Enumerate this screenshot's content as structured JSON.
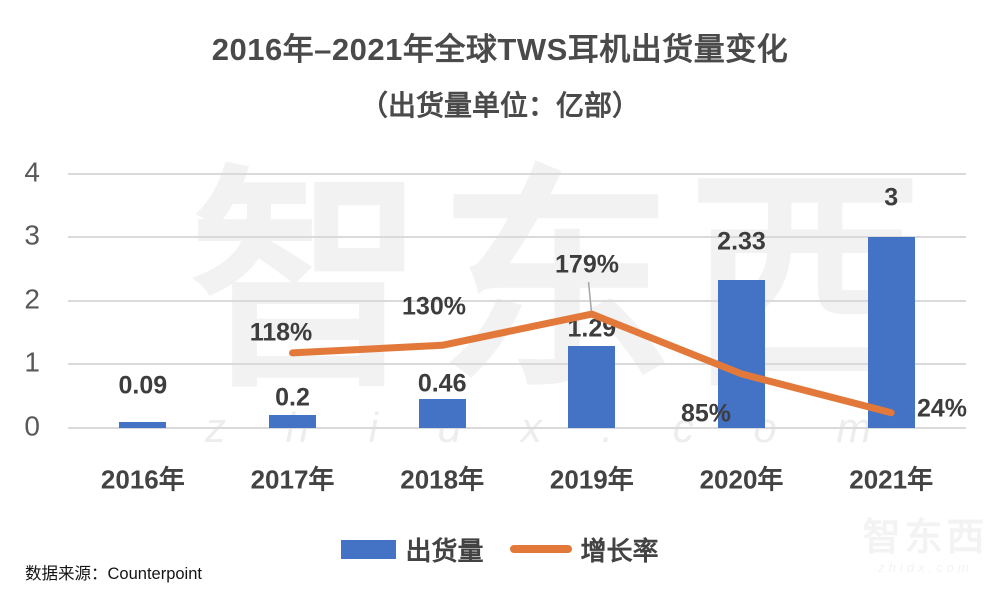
{
  "header": {
    "title": "2016年–2021年全球TWS耳机出货量变化",
    "subtitle": "（出货量单位：亿部）"
  },
  "footer": {
    "source": "数据来源：Counterpoint"
  },
  "legend": {
    "items": [
      {
        "label": "出货量",
        "marker": "bar-swatch",
        "color": "#4472C4"
      },
      {
        "label": "增长率",
        "marker": "line-swatch",
        "color": "#E2793A"
      }
    ]
  },
  "watermark": {
    "logo": "智东西",
    "domain": "z h i d x . c o m",
    "corner_logo": "智东西",
    "corner_domain": "zhidx.com"
  },
  "colors": {
    "bar": "#4472C4",
    "line": "#E2793A",
    "grid": "#DADADA",
    "label_text": "#3D3D3D",
    "axis_text": "#595959",
    "leader_line": "#A6A6A6"
  },
  "chart_data": {
    "type": "bar",
    "subtype": "combo-bar-line-dual-axis",
    "title": "2016年–2021年全球TWS耳机出货量变化",
    "subtitle": "（出货量单位：亿部）",
    "categories": [
      "2016年",
      "2017年",
      "2018年",
      "2019年",
      "2020年",
      "2021年"
    ],
    "series": [
      {
        "name": "出货量",
        "type": "bar",
        "axis": "primary",
        "unit": "亿部",
        "values": [
          0.09,
          0.2,
          0.46,
          1.29,
          2.33,
          3
        ],
        "data_labels": [
          "0.09",
          "0.2",
          "0.46",
          "1.29",
          "2.33",
          "3"
        ]
      },
      {
        "name": "增长率",
        "type": "line",
        "axis": "secondary",
        "unit": "%",
        "values": [
          null,
          118,
          130,
          179,
          85,
          24
        ],
        "data_labels": [
          null,
          "118%",
          "130%",
          "179%",
          "85%",
          "24%"
        ]
      }
    ],
    "primary_axis": {
      "min": 0,
      "max": 4,
      "ticks": [
        0,
        1,
        2,
        3,
        4
      ]
    },
    "secondary_axis": {
      "min": 0,
      "max": 400,
      "unit": "%",
      "shown": false
    },
    "grid": true,
    "legend_position": "bottom",
    "source": "数据来源：Counterpoint"
  }
}
